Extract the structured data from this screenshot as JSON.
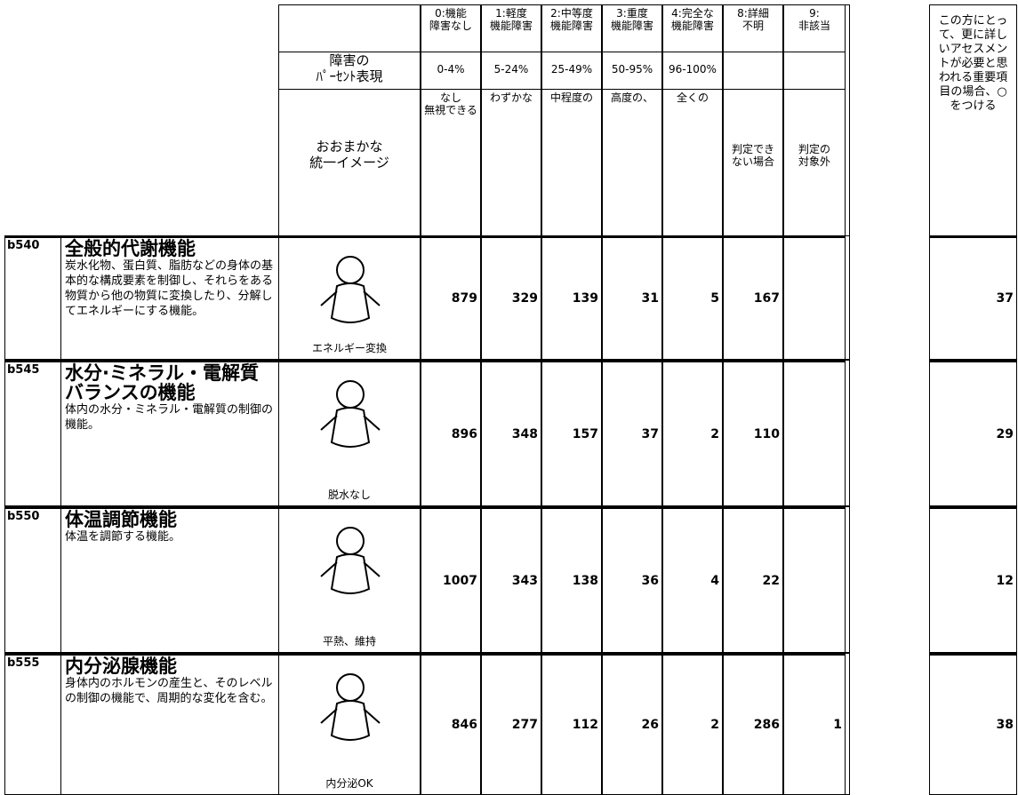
{
  "header": {
    "label_percent": "障害の\nﾊﾟｰｾﾝﾄ表現",
    "label_image": "おおまかな\n統一イメージ",
    "grades": [
      {
        "code": "0:機能\n障害なし",
        "range": "0-4%",
        "image": "なし\n無視できる"
      },
      {
        "code": "1:軽度\n機能障害",
        "range": "5-24%",
        "image": "わずかな"
      },
      {
        "code": "2:中等度\n機能障害",
        "range": "25-49%",
        "image": "中程度の"
      },
      {
        "code": "3:重度\n機能障害",
        "range": "50-95%",
        "image": "高度の、"
      },
      {
        "code": "4:完全な\n機能障害",
        "range": "96-100%",
        "image": "全くの"
      },
      {
        "code": "8:詳細\n不明",
        "image": "判定でき\nない場合"
      },
      {
        "code": "9:\n非該当",
        "image": "判定の\n対象外"
      }
    ],
    "note": "この方にとって、更に詳しいアセスメントが必要と思われる重要項目の場合、○をつける"
  },
  "rows": [
    {
      "code": "b540",
      "title": "全般的代謝機能",
      "description": "炭水化物、蛋白質、脂肪などの身体の基本的な構成要素を制御し、それらをある物質から他の物質に変換したり、分解してエネルギーにする機能。",
      "caption": "エネルギー変換",
      "values": [
        879,
        329,
        139,
        31,
        5,
        167,
        null
      ],
      "flag": 37
    },
    {
      "code": "b545",
      "title": "水分·ミネラル・電解質バランスの機能",
      "description": "体内の水分・ミネラル・電解質の制御の機能。",
      "caption": "脱水なし",
      "values": [
        896,
        348,
        157,
        37,
        2,
        110,
        null
      ],
      "flag": 29
    },
    {
      "code": "b550",
      "title": "体温調節機能",
      "description": "体温を調節する機能。",
      "caption": "平熱、維持",
      "values": [
        1007,
        343,
        138,
        36,
        4,
        22,
        null
      ],
      "flag": 12
    },
    {
      "code": "b555",
      "title": "内分泌腺機能",
      "description": "身体内のホルモンの産生と、そのレベルの制御の機能で、周期的な変化を含む。",
      "caption": "内分泌OK",
      "values": [
        846,
        277,
        112,
        26,
        2,
        286,
        1
      ],
      "flag": 38
    }
  ]
}
